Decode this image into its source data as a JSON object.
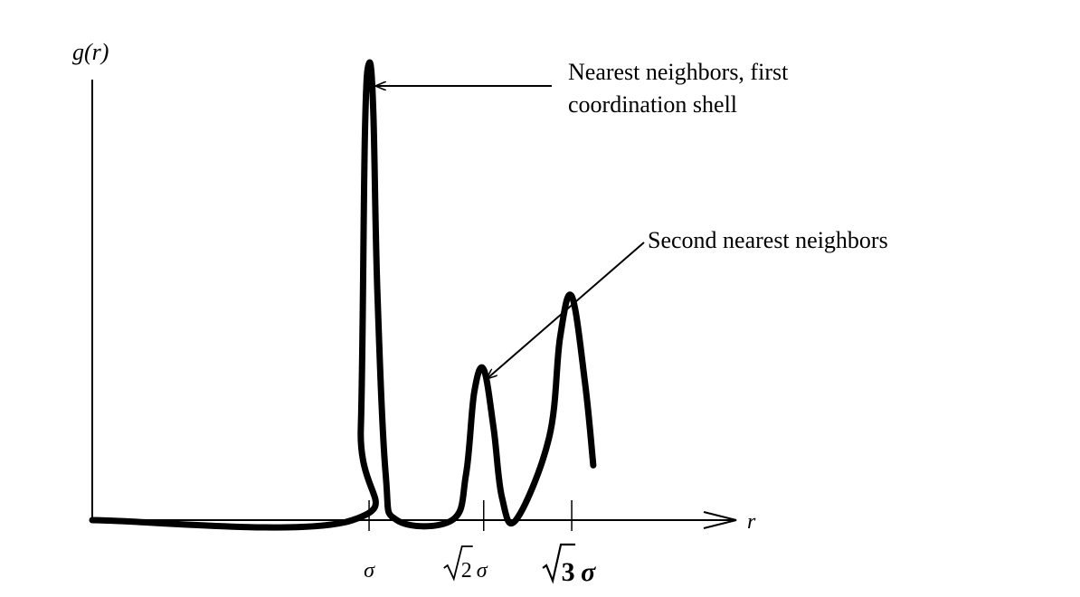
{
  "chart_data": {
    "type": "line",
    "ylabel": "g(r)",
    "xlabel": "r",
    "x_ticks": [
      {
        "label": "σ",
        "value": 1.0
      },
      {
        "label_radicand": "2",
        "label_suffix": "σ",
        "value": 1.414
      },
      {
        "label_radicand": "3",
        "label_suffix": "σ",
        "value": 1.732
      }
    ],
    "xlim": [
      0.0,
      2.15
    ],
    "ylim": [
      0.0,
      1.0
    ],
    "series": [
      {
        "x": [
          0.0,
          0.94,
          0.97,
          0.985,
          1.0,
          1.015,
          1.03,
          1.06,
          1.1,
          1.3,
          1.35,
          1.38,
          1.414,
          1.45,
          1.48,
          1.53,
          1.65,
          1.69,
          1.732,
          1.78,
          1.81
        ],
        "y": [
          0.0,
          0.0,
          0.2,
          0.85,
          1.0,
          0.9,
          0.5,
          0.1,
          0.0,
          0.0,
          0.1,
          0.28,
          0.33,
          0.2,
          0.05,
          0.0,
          0.18,
          0.4,
          0.49,
          0.3,
          0.12
        ]
      }
    ],
    "annotations": [
      {
        "lines": [
          "Nearest neighbors, first",
          "coordination shell"
        ],
        "points_to_x": 1.0,
        "points_to_y": 1.0
      },
      {
        "lines": [
          "Second nearest neighbors"
        ],
        "points_to_x": 1.414,
        "points_to_y": 0.33
      }
    ]
  }
}
